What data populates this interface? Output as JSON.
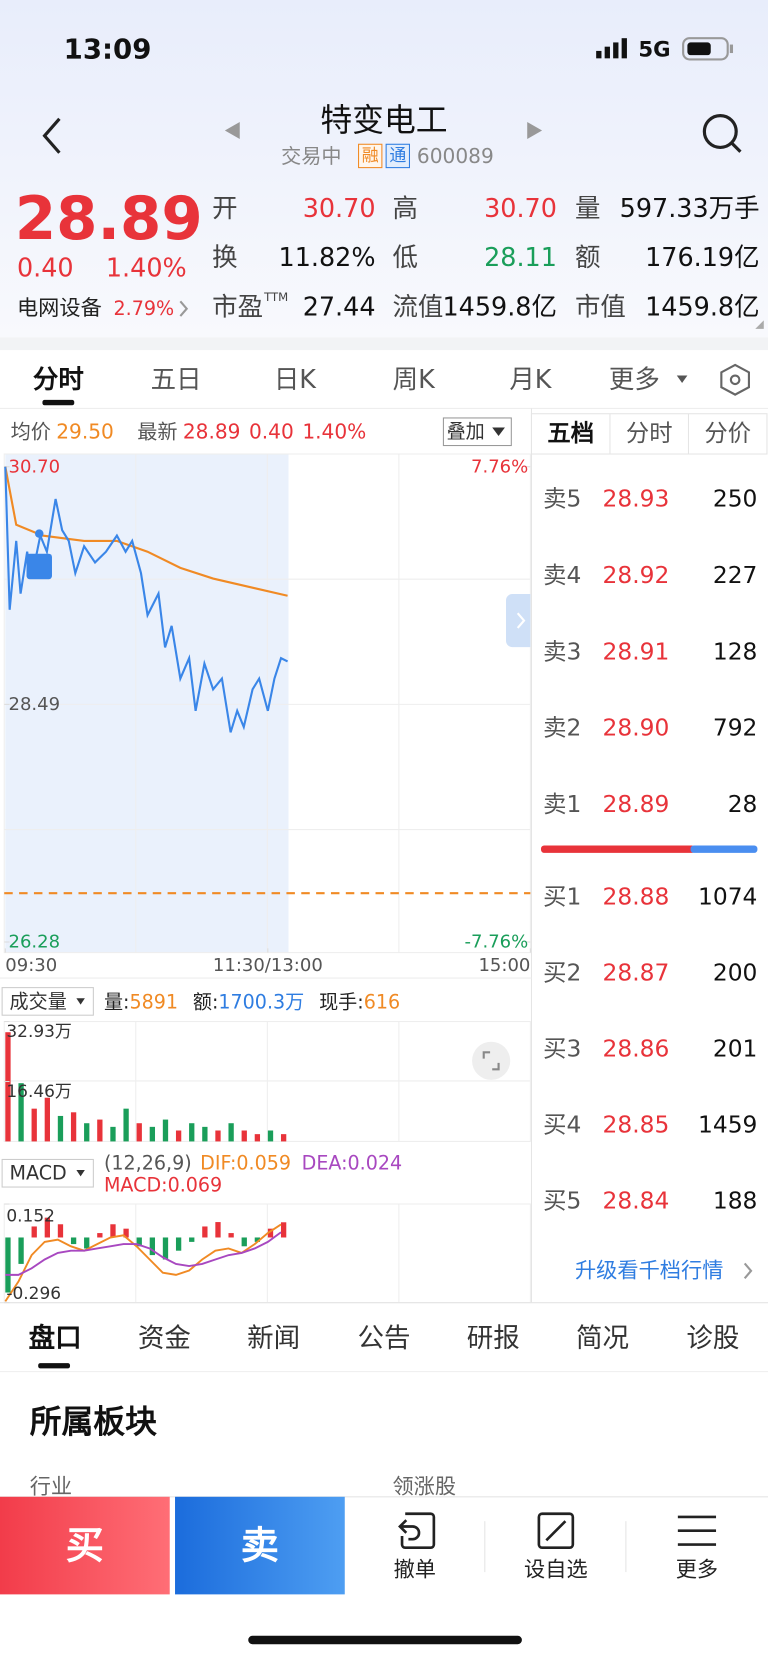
{
  "status_bar": {
    "time": "13:09",
    "network": "5G"
  },
  "header": {
    "title": "特变电工",
    "status": "交易中",
    "badge_margin": "融",
    "badge_connect": "通",
    "code": "600089"
  },
  "quote": {
    "price": "28.89",
    "change": "0.40",
    "change_pct": "1.40%",
    "sector": "电网设备",
    "sector_pct": "2.79%",
    "stats": [
      {
        "label": "开",
        "value": "30.70",
        "color": "#e8333a"
      },
      {
        "label": "高",
        "value": "30.70",
        "color": "#e8333a"
      },
      {
        "label": "量",
        "value": "597.33万手",
        "color": "#111111"
      },
      {
        "label": "换",
        "value": "11.82%",
        "color": "#111111"
      },
      {
        "label": "低",
        "value": "28.11",
        "color": "#1a9e5a"
      },
      {
        "label": "额",
        "value": "176.19亿",
        "color": "#111111"
      },
      {
        "label": "市盈",
        "sup": "TTM",
        "value": "27.44",
        "color": "#111111"
      },
      {
        "label": "流值",
        "value": "1459.8亿",
        "color": "#111111"
      },
      {
        "label": "市值",
        "value": "1459.8亿",
        "color": "#111111"
      }
    ]
  },
  "chart_tabs": [
    "分时",
    "五日",
    "日K",
    "周K",
    "月K",
    "更多"
  ],
  "intraday": {
    "avg_label": "均价",
    "avg": "29.50",
    "latest_label": "最新",
    "latest": "28.89",
    "change": "0.40",
    "change_pct": "1.40%",
    "overlay": "叠加",
    "xlim": [
      0,
      240
    ],
    "xticks": [
      {
        "value": 0,
        "label": "09:30"
      },
      {
        "value": 120,
        "label": "11:30/13:00"
      },
      {
        "value": 240,
        "label": "15:00"
      }
    ],
    "ylim": [
      26.28,
      30.7
    ],
    "yticks": [
      {
        "value": 30.7,
        "label": "30.70"
      },
      28.49,
      26.28
    ],
    "y2lim": [
      -7.76,
      7.76
    ],
    "y2ticks": [
      {
        "value": 7.76,
        "label": "7.76%"
      },
      {
        "value": -7.76,
        "label": "-7.76%"
      }
    ],
    "price": {
      "color": "#3a86e8",
      "x": [
        0,
        2,
        5,
        7,
        10,
        12,
        16,
        19,
        23,
        26,
        29,
        32,
        36,
        41,
        46,
        51,
        55,
        58,
        62,
        65,
        70,
        73,
        76,
        80,
        84,
        87,
        91,
        95,
        99,
        103,
        106,
        109,
        113,
        116,
        120,
        123,
        126,
        129
      ],
      "values": [
        30.7,
        29.37,
        30.01,
        29.52,
        29.91,
        29.66,
        30.06,
        29.91,
        30.4,
        30.11,
        30.01,
        29.71,
        29.96,
        29.81,
        29.91,
        30.06,
        29.91,
        30.01,
        29.71,
        29.32,
        29.52,
        29.02,
        29.22,
        28.73,
        28.92,
        28.43,
        28.87,
        28.63,
        28.73,
        28.23,
        28.43,
        28.28,
        28.63,
        28.73,
        28.43,
        28.73,
        28.92,
        28.89
      ]
    },
    "average": {
      "color": "#f08a24",
      "x": [
        0,
        5,
        17,
        36,
        51,
        65,
        80,
        95,
        114,
        129
      ],
      "values": [
        30.7,
        30.16,
        30.06,
        30.01,
        30.01,
        29.91,
        29.76,
        29.66,
        29.57,
        29.5
      ]
    }
  },
  "order_book": {
    "tabs": [
      "五档",
      "分时",
      "分价"
    ],
    "asks": [
      {
        "label": "卖5",
        "price": "28.93",
        "volume": "250"
      },
      {
        "label": "卖4",
        "price": "28.92",
        "volume": "227"
      },
      {
        "label": "卖3",
        "price": "28.91",
        "volume": "128"
      },
      {
        "label": "卖2",
        "price": "28.90",
        "volume": "792"
      },
      {
        "label": "卖1",
        "price": "28.89",
        "volume": "28"
      }
    ],
    "bids": [
      {
        "label": "买1",
        "price": "28.88",
        "volume": "1074"
      },
      {
        "label": "买2",
        "price": "28.87",
        "volume": "200"
      },
      {
        "label": "买3",
        "price": "28.86",
        "volume": "201"
      },
      {
        "label": "买4",
        "price": "28.85",
        "volume": "1459"
      },
      {
        "label": "买5",
        "price": "28.84",
        "volume": "188"
      }
    ],
    "upgrade": "升级看千档行情"
  },
  "volume": {
    "label": "成交量",
    "stats": [
      {
        "label": "量:",
        "value": "5891",
        "color": "#f08a24"
      },
      {
        "label": "额:",
        "value": "1700.3万",
        "color": "#2f7de1"
      },
      {
        "label": "现手:",
        "value": "616",
        "color": "#f08a24"
      }
    ],
    "ylim": [
      0,
      32.93
    ],
    "yticks": [
      {
        "value": 32.93,
        "label": "32.93万"
      },
      {
        "value": 16.46,
        "label": "16.46万"
      }
    ],
    "x": [
      0,
      6,
      12,
      18,
      24,
      30,
      36,
      42,
      48,
      54,
      60,
      66,
      72,
      78,
      84,
      90,
      96,
      102,
      108,
      114,
      120,
      126
    ],
    "values": [
      30,
      16,
      9,
      12,
      7,
      8,
      5,
      6,
      4,
      9,
      5,
      4,
      6,
      3,
      5,
      4,
      3,
      5,
      3,
      2,
      3,
      2
    ],
    "colors": [
      "#e8333a",
      "#1a9e5a",
      "#e8333a",
      "#e8333a",
      "#1a9e5a",
      "#e8333a",
      "#1a9e5a",
      "#e8333a",
      "#1a9e5a",
      "#1a9e5a",
      "#e8333a",
      "#1a9e5a",
      "#1a9e5a",
      "#e8333a",
      "#1a9e5a",
      "#1a9e5a",
      "#e8333a",
      "#1a9e5a",
      "#e8333a",
      "#e8333a",
      "#1a9e5a",
      "#e8333a"
    ]
  },
  "macd": {
    "label": "MACD",
    "params": "(12,26,9)",
    "dif": "DIF:0.059",
    "dea": "DEA:0.024",
    "macd": "MACD:0.069",
    "ylim": [
      -0.296,
      0.152
    ],
    "yticks": [
      0.152,
      -0.296
    ],
    "x": [
      0,
      6,
      12,
      18,
      24,
      30,
      36,
      42,
      48,
      54,
      60,
      66,
      72,
      78,
      84,
      90,
      96,
      102,
      108,
      114,
      120,
      126
    ],
    "bars": [
      -0.25,
      -0.12,
      0.05,
      0.09,
      0.06,
      -0.03,
      -0.05,
      0.02,
      0.06,
      0.04,
      -0.04,
      -0.08,
      -0.1,
      -0.06,
      -0.02,
      0.05,
      0.07,
      0.02,
      -0.04,
      -0.02,
      0.04,
      0.069
    ],
    "dif_line": {
      "color": "#f08a24",
      "values": [
        -0.29,
        -0.2,
        -0.08,
        -0.02,
        -0.01,
        -0.04,
        -0.06,
        -0.03,
        0.0,
        0.01,
        -0.04,
        -0.1,
        -0.16,
        -0.17,
        -0.15,
        -0.1,
        -0.06,
        -0.05,
        -0.07,
        -0.03,
        0.02,
        0.059
      ]
    },
    "dea_line": {
      "color": "#a848c0",
      "values": [
        -0.17,
        -0.17,
        -0.14,
        -0.1,
        -0.07,
        -0.06,
        -0.06,
        -0.05,
        -0.04,
        -0.03,
        -0.03,
        -0.05,
        -0.09,
        -0.12,
        -0.13,
        -0.12,
        -0.1,
        -0.08,
        -0.07,
        -0.05,
        -0.02,
        0.024
      ]
    }
  },
  "info_tabs": [
    "盘口",
    "资金",
    "新闻",
    "公告",
    "研报",
    "简况",
    "诊股"
  ],
  "section": {
    "title": "所属板块",
    "col1": "行业",
    "col2": "领涨股"
  },
  "actions": [
    "买",
    "卖",
    "撤单",
    "设自选",
    "更多"
  ]
}
